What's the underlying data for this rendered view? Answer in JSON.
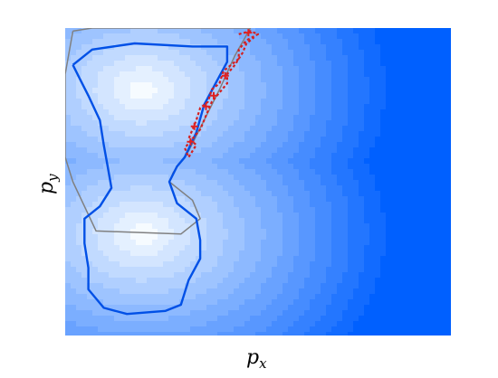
{
  "chart_data": {
    "type": "contour",
    "title": "",
    "xlabel": "p",
    "xlabel_subscript": "x",
    "ylabel": "p",
    "ylabel_subscript": "y",
    "ticks_shown": false,
    "grid": false,
    "legend": "none",
    "colormap": {
      "low": "#f6fbff",
      "high": "#0060ff",
      "levels": 14
    },
    "series": [
      {
        "style": "gray-solid",
        "points": [
          [
            0.02,
            0.99
          ],
          [
            0.07,
            1.0
          ],
          [
            0.48,
            1.0
          ],
          [
            0.44,
            0.91
          ],
          [
            0.4,
            0.8
          ],
          [
            0.36,
            0.7
          ],
          [
            0.32,
            0.6
          ],
          [
            0.28,
            0.53
          ],
          [
            0.27,
            0.5
          ],
          [
            0.33,
            0.44
          ],
          [
            0.35,
            0.38
          ],
          [
            0.3,
            0.33
          ],
          [
            0.08,
            0.34
          ],
          [
            0.05,
            0.42
          ],
          [
            0.02,
            0.5
          ],
          [
            0.0,
            0.58
          ],
          [
            0.0,
            0.7
          ],
          [
            0.0,
            0.85
          ],
          [
            0.02,
            0.99
          ]
        ]
      },
      {
        "style": "blue-solid",
        "points": [
          [
            0.02,
            0.88
          ],
          [
            0.07,
            0.93
          ],
          [
            0.18,
            0.95
          ],
          [
            0.33,
            0.94
          ],
          [
            0.42,
            0.94
          ],
          [
            0.42,
            0.89
          ],
          [
            0.39,
            0.82
          ],
          [
            0.36,
            0.75
          ],
          [
            0.34,
            0.66
          ],
          [
            0.31,
            0.58
          ],
          [
            0.29,
            0.55
          ],
          [
            0.27,
            0.5
          ],
          [
            0.29,
            0.43
          ],
          [
            0.34,
            0.38
          ],
          [
            0.35,
            0.31
          ],
          [
            0.35,
            0.25
          ],
          [
            0.32,
            0.18
          ],
          [
            0.3,
            0.1
          ],
          [
            0.26,
            0.08
          ],
          [
            0.16,
            0.07
          ],
          [
            0.1,
            0.09
          ],
          [
            0.06,
            0.15
          ],
          [
            0.06,
            0.22
          ],
          [
            0.05,
            0.3
          ],
          [
            0.05,
            0.38
          ],
          [
            0.09,
            0.42
          ],
          [
            0.12,
            0.48
          ],
          [
            0.11,
            0.55
          ],
          [
            0.1,
            0.62
          ],
          [
            0.09,
            0.7
          ],
          [
            0.06,
            0.78
          ],
          [
            0.04,
            0.83
          ],
          [
            0.02,
            0.88
          ]
        ]
      },
      {
        "style": "red-dashed",
        "points": [
          [
            0.45,
            0.98
          ],
          [
            0.48,
            0.99
          ],
          [
            0.5,
            0.98
          ],
          [
            0.47,
            0.96
          ],
          [
            0.45,
            0.93
          ],
          [
            0.45,
            0.9
          ],
          [
            0.43,
            0.88
          ],
          [
            0.41,
            0.86
          ],
          [
            0.4,
            0.82
          ],
          [
            0.38,
            0.8
          ],
          [
            0.37,
            0.76
          ],
          [
            0.35,
            0.74
          ],
          [
            0.34,
            0.7
          ],
          [
            0.33,
            0.67
          ],
          [
            0.32,
            0.64
          ],
          [
            0.34,
            0.62
          ],
          [
            0.33,
            0.6
          ],
          [
            0.32,
            0.58
          ],
          [
            0.31,
            0.61
          ],
          [
            0.33,
            0.64
          ],
          [
            0.35,
            0.67
          ],
          [
            0.36,
            0.7
          ],
          [
            0.37,
            0.73
          ],
          [
            0.38,
            0.76
          ],
          [
            0.4,
            0.79
          ],
          [
            0.42,
            0.82
          ],
          [
            0.42,
            0.85
          ],
          [
            0.44,
            0.88
          ],
          [
            0.46,
            0.92
          ],
          [
            0.47,
            0.95
          ],
          [
            0.49,
            0.97
          ]
        ]
      }
    ],
    "markers": [
      {
        "shape": "plus",
        "color": "#e02020",
        "x": 0.415,
        "y": 0.845
      },
      {
        "shape": "plus",
        "color": "#e02020",
        "x": 0.385,
        "y": 0.78
      },
      {
        "shape": "plus",
        "color": "#e02020",
        "x": 0.365,
        "y": 0.745
      },
      {
        "shape": "plus",
        "color": "#e02020",
        "x": 0.335,
        "y": 0.68
      },
      {
        "shape": "plus",
        "color": "#e02020",
        "x": 0.325,
        "y": 0.63
      },
      {
        "shape": "plus",
        "color": "#e02020",
        "x": 0.475,
        "y": 0.985
      }
    ]
  }
}
